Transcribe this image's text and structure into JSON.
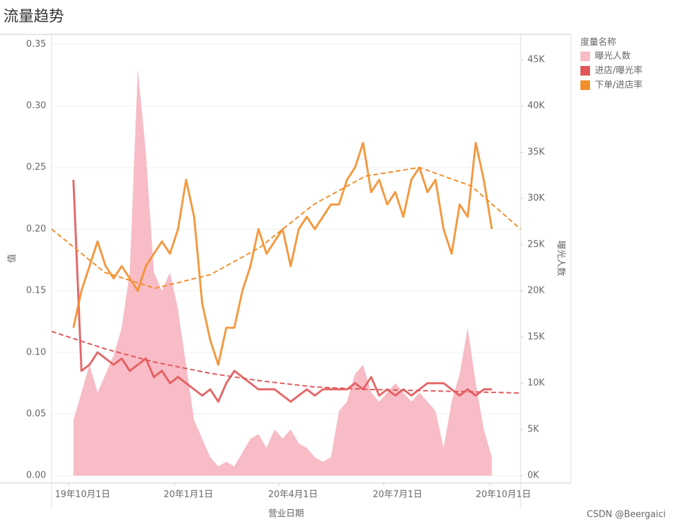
{
  "chart_data": {
    "type": "line",
    "title": "流量趋势",
    "x_label": "营业日期",
    "y_label": "值",
    "y2_label": "曝光人数",
    "legend_title": "度量名称",
    "legend": "right",
    "grid": true,
    "watermark": "CSDN @Beergaici",
    "x": [
      "2019-10-05",
      "2019-10-12",
      "2019-10-19",
      "2019-10-26",
      "2019-11-02",
      "2019-11-09",
      "2019-11-16",
      "2019-11-23",
      "2019-11-30",
      "2019-12-07",
      "2019-12-14",
      "2019-12-21",
      "2019-12-28",
      "2020-01-04",
      "2020-01-11",
      "2020-01-18",
      "2020-01-25",
      "2020-02-01",
      "2020-02-08",
      "2020-02-15",
      "2020-02-22",
      "2020-02-29",
      "2020-03-07",
      "2020-03-14",
      "2020-03-21",
      "2020-03-28",
      "2020-04-04",
      "2020-04-11",
      "2020-04-18",
      "2020-04-25",
      "2020-05-02",
      "2020-05-09",
      "2020-05-16",
      "2020-05-23",
      "2020-05-30",
      "2020-06-06",
      "2020-06-13",
      "2020-06-20",
      "2020-06-27",
      "2020-07-04",
      "2020-07-11",
      "2020-07-18",
      "2020-07-25",
      "2020-08-01",
      "2020-08-08",
      "2020-08-15",
      "2020-08-22",
      "2020-08-29",
      "2020-09-05",
      "2020-09-12",
      "2020-09-19",
      "2020-09-26",
      "2020-10-03"
    ],
    "xlim": [
      "2019-09-16",
      "2020-10-28"
    ],
    "xticks": [
      {
        "value": "2019-10-01",
        "label": "19年10月1日"
      },
      {
        "value": "2020-01-01",
        "label": "20年1月1日"
      },
      {
        "value": "2020-04-01",
        "label": "20年4月1日"
      },
      {
        "value": "2020-07-01",
        "label": "20年7月1日"
      },
      {
        "value": "2020-10-01",
        "label": "20年10月1日"
      }
    ],
    "ylim": [
      -0.006,
      0.358
    ],
    "yticks": [
      {
        "value": 0,
        "label": "0.00"
      },
      0.05,
      {
        "value": 0.1,
        "label": "0.10"
      },
      0.15,
      {
        "value": 0.2,
        "label": "0.20"
      },
      0.25,
      {
        "value": 0.3,
        "label": "0.30"
      },
      0.35
    ],
    "y2lim": [
      -800,
      47750
    ],
    "y2ticks": [
      {
        "value": 0,
        "label": "0K"
      },
      {
        "value": 5000,
        "label": "5K"
      },
      {
        "value": 10000,
        "label": "10K"
      },
      {
        "value": 15000,
        "label": "15K"
      },
      {
        "value": 20000,
        "label": "20K"
      },
      {
        "value": 25000,
        "label": "25K"
      },
      {
        "value": 30000,
        "label": "30K"
      },
      {
        "value": 35000,
        "label": "35K"
      },
      {
        "value": 40000,
        "label": "40K"
      },
      {
        "value": 45000,
        "label": "45K"
      }
    ],
    "series": [
      {
        "name": "曝光人数",
        "color": "#f7bcc6",
        "mark": "area",
        "axis": "y2",
        "values": [
          6000,
          9000,
          12000,
          9000,
          11000,
          13000,
          16000,
          22000,
          44000,
          35000,
          22000,
          20000,
          22000,
          18000,
          12000,
          6000,
          4000,
          2000,
          1000,
          1500,
          1000,
          2500,
          4000,
          4500,
          3000,
          5000,
          4000,
          5000,
          3500,
          3000,
          2000,
          1500,
          2000,
          7000,
          8000,
          11000,
          12000,
          9000,
          8000,
          9000,
          10000,
          9000,
          8000,
          9000,
          8000,
          7000,
          3000,
          8000,
          11000,
          16000,
          10000,
          5000,
          2000
        ]
      },
      {
        "name": "进店/曝光率",
        "color": "#e15759",
        "mark": "line",
        "axis": "y",
        "values": [
          0.24,
          0.085,
          0.09,
          0.1,
          0.095,
          0.09,
          0.095,
          0.085,
          0.09,
          0.095,
          0.08,
          0.085,
          0.075,
          0.08,
          0.075,
          0.07,
          0.065,
          0.07,
          0.06,
          0.075,
          0.085,
          0.08,
          0.075,
          0.07,
          0.07,
          0.07,
          0.065,
          0.06,
          0.065,
          0.07,
          0.065,
          0.07,
          0.07,
          0.07,
          0.07,
          0.075,
          0.07,
          0.08,
          0.065,
          0.07,
          0.065,
          0.07,
          0.065,
          0.07,
          0.075,
          0.075,
          0.075,
          0.07,
          0.065,
          0.07,
          0.065,
          0.07,
          0.07
        ],
        "trend": {
          "x": [
            "2019-09-16",
            "2019-11-01",
            "2019-12-15",
            "2020-02-01",
            "2020-03-15",
            "2020-05-01",
            "2020-06-15",
            "2020-08-01",
            "2020-09-15",
            "2020-10-28"
          ],
          "values": [
            0.117,
            0.103,
            0.092,
            0.083,
            0.077,
            0.072,
            0.07,
            0.069,
            0.068,
            0.067
          ]
        }
      },
      {
        "name": "下单/进店率",
        "color": "#f28e2b",
        "mark": "line",
        "axis": "y",
        "values": [
          0.12,
          0.15,
          0.17,
          0.19,
          0.17,
          0.16,
          0.17,
          0.16,
          0.15,
          0.17,
          0.18,
          0.19,
          0.18,
          0.2,
          0.24,
          0.21,
          0.14,
          0.11,
          0.09,
          0.12,
          0.12,
          0.15,
          0.17,
          0.2,
          0.18,
          0.19,
          0.2,
          0.17,
          0.2,
          0.21,
          0.2,
          0.21,
          0.22,
          0.22,
          0.24,
          0.25,
          0.27,
          0.23,
          0.24,
          0.22,
          0.23,
          0.21,
          0.24,
          0.25,
          0.23,
          0.24,
          0.2,
          0.18,
          0.22,
          0.21,
          0.27,
          0.24,
          0.2
        ],
        "trend": {
          "x": [
            "2019-09-16",
            "2019-11-01",
            "2019-12-15",
            "2020-02-01",
            "2020-03-15",
            "2020-05-01",
            "2020-06-15",
            "2020-08-01",
            "2020-09-15",
            "2020-10-28"
          ],
          "values": [
            0.2,
            0.165,
            0.152,
            0.163,
            0.185,
            0.22,
            0.243,
            0.25,
            0.235,
            0.2
          ]
        }
      }
    ]
  }
}
